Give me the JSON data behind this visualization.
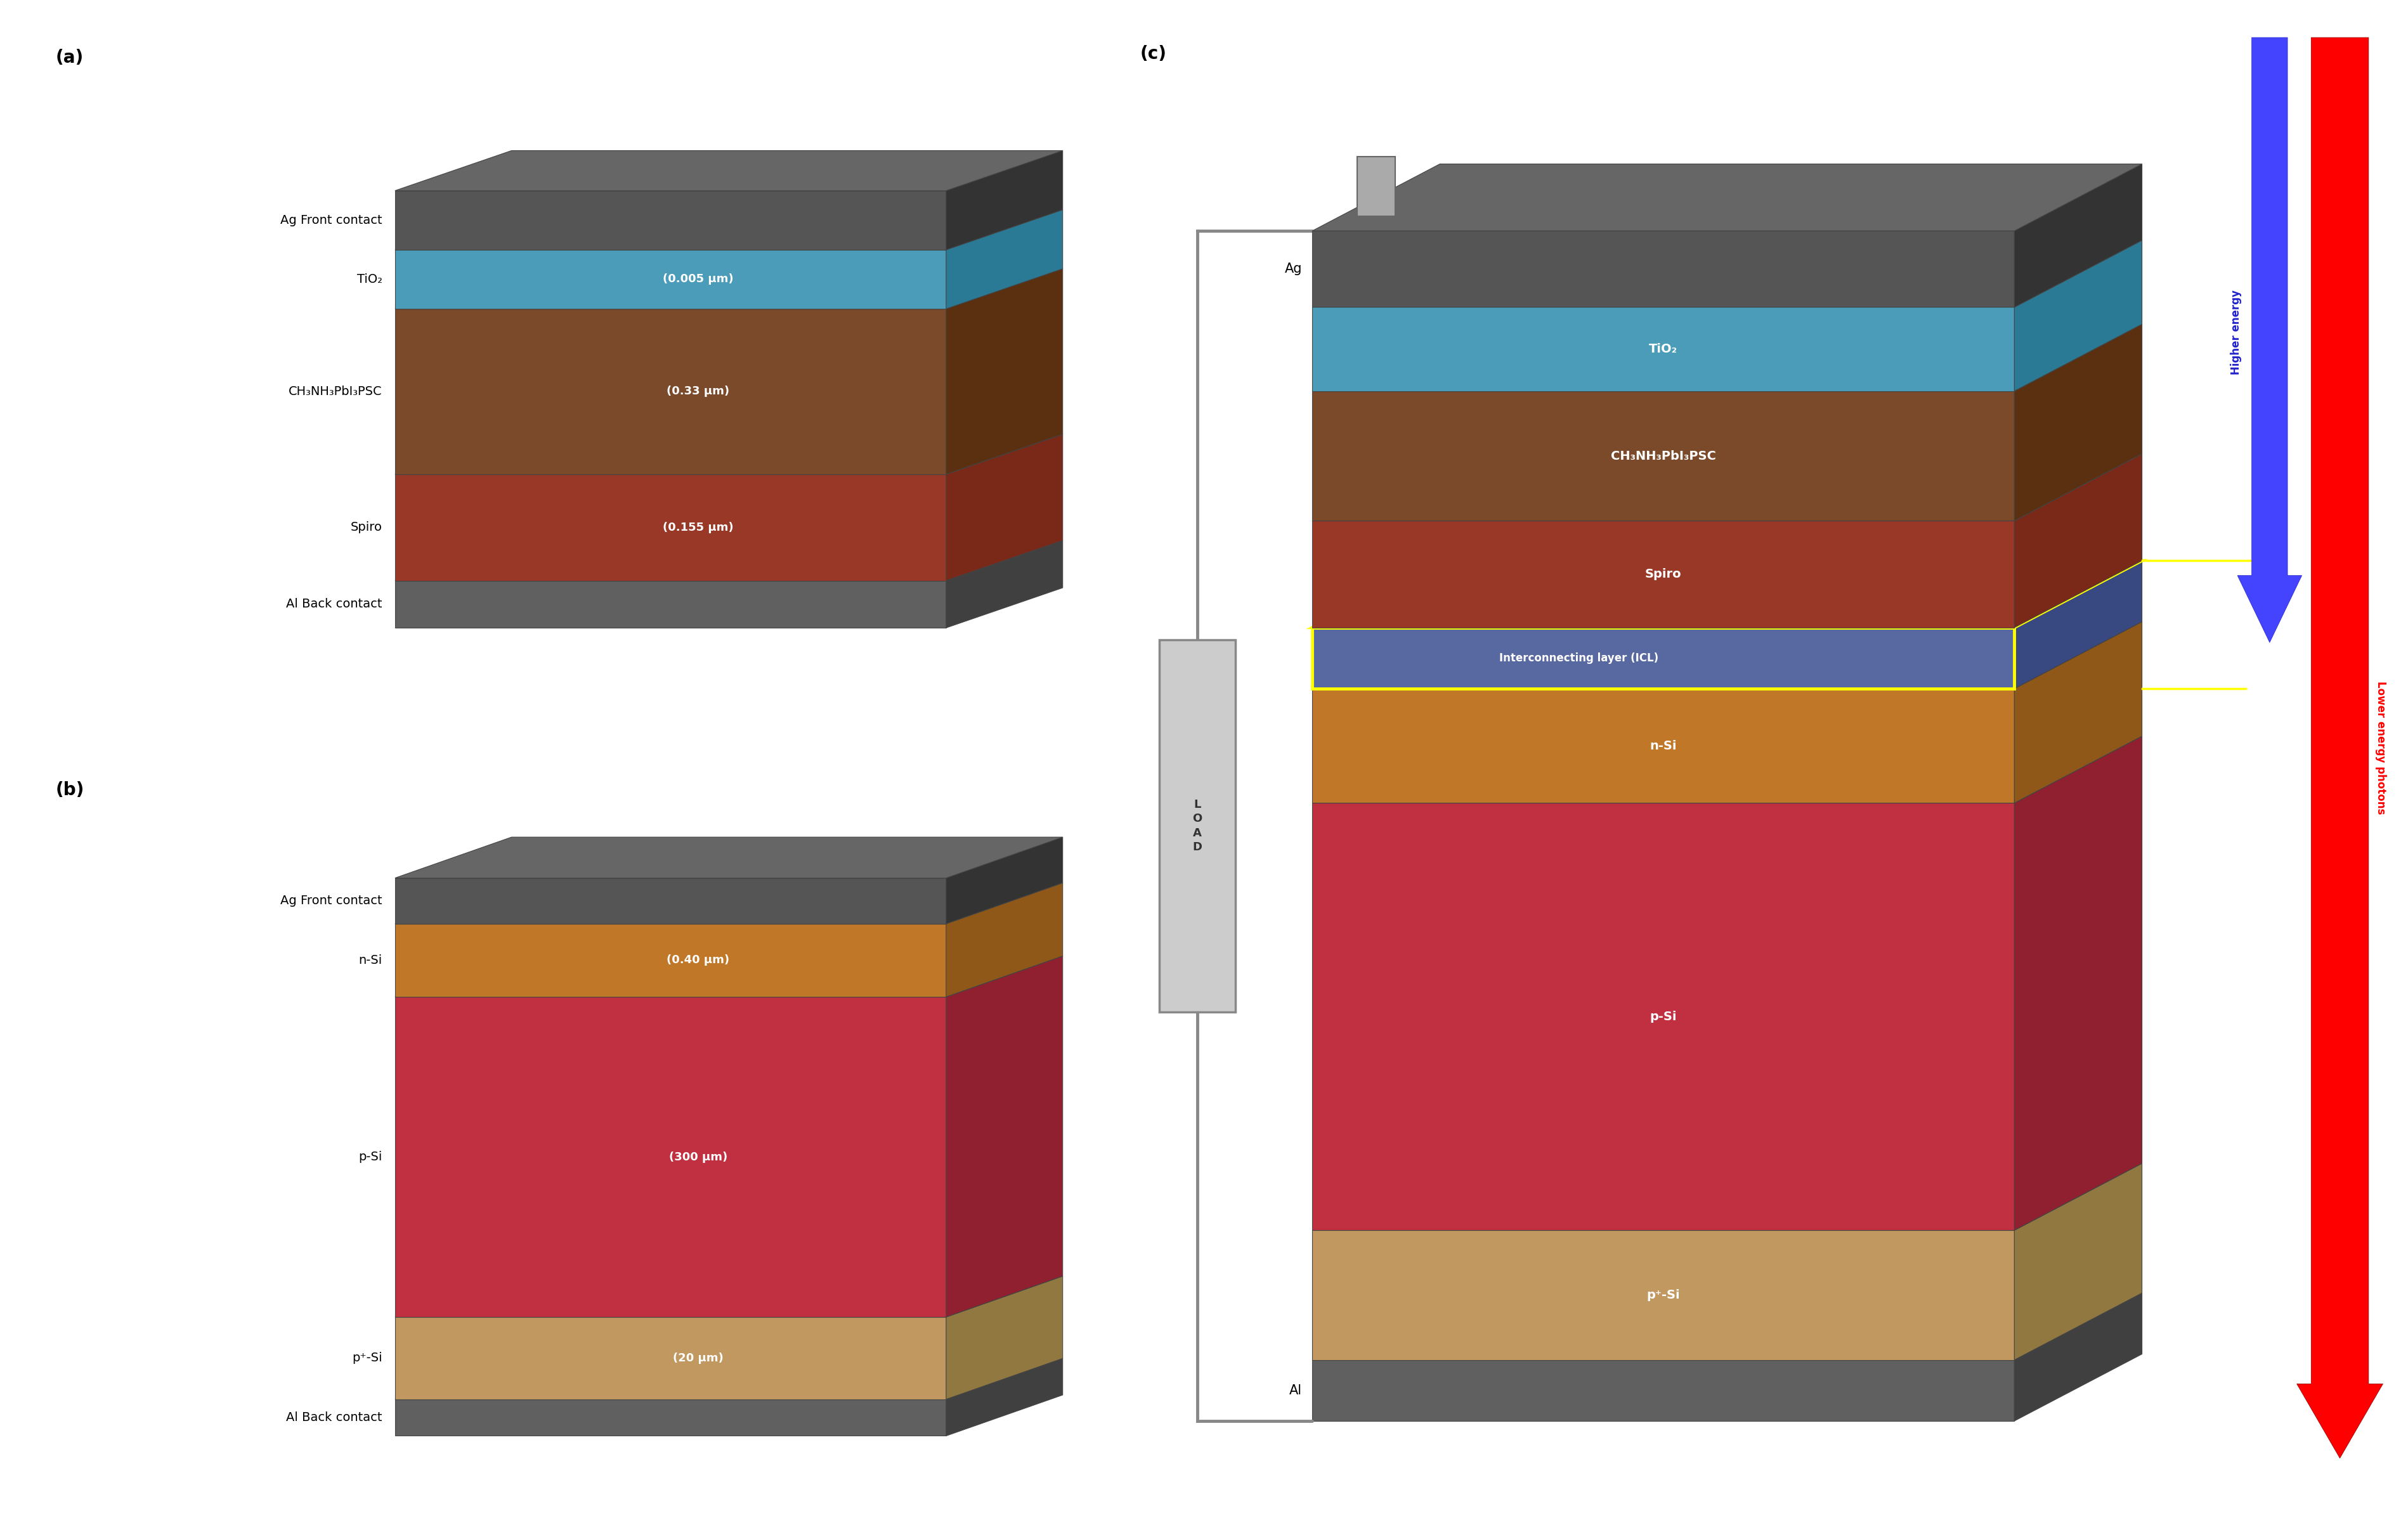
{
  "fig_width": 37.98,
  "fig_height": 23.94,
  "bg_color": "#ffffff",
  "panel_a": {
    "label": "(a)",
    "layers_top_to_bottom": [
      {
        "name": "Ag Front contact",
        "color_face": "#555555",
        "color_side": "#333333",
        "color_top": "#666666",
        "thickness": 0.5,
        "label_text": null
      },
      {
        "name": "TiO₂",
        "color_face": "#4a9cb8",
        "color_side": "#2a7a96",
        "color_top": "#6ab8d4",
        "thickness": 0.5,
        "label_text": "(0.005 μm)"
      },
      {
        "name": "CH₃NH₃PbI₃PSC",
        "color_face": "#7a4a2a",
        "color_side": "#5a3010",
        "color_top": "#8a6040",
        "thickness": 1.4,
        "label_text": "(0.33 μm)"
      },
      {
        "name": "Spiro",
        "color_face": "#9a3828",
        "color_side": "#7a2818",
        "color_top": "#aa4838",
        "thickness": 0.9,
        "label_text": "(0.155 μm)"
      },
      {
        "name": "Al Back contact",
        "color_face": "#606060",
        "color_side": "#404040",
        "color_top": "#707070",
        "thickness": 0.4,
        "label_text": null
      }
    ]
  },
  "panel_b": {
    "label": "(b)",
    "layers_top_to_bottom": [
      {
        "name": "Ag Front contact",
        "color_face": "#555555",
        "color_side": "#333333",
        "color_top": "#666666",
        "thickness": 0.5,
        "label_text": null
      },
      {
        "name": "n-Si",
        "color_face": "#c07828",
        "color_side": "#905818",
        "color_top": "#d09040",
        "thickness": 0.8,
        "label_text": "(0.40 μm)"
      },
      {
        "name": "p-Si",
        "color_face": "#c03040",
        "color_side": "#902030",
        "color_top": "#d04050",
        "thickness": 3.5,
        "label_text": "(300 μm)"
      },
      {
        "name": "p⁺-Si",
        "color_face": "#c09860",
        "color_side": "#907840",
        "color_top": "#d0b070",
        "thickness": 0.9,
        "label_text": "(20 μm)"
      },
      {
        "name": "Al Back contact",
        "color_face": "#606060",
        "color_side": "#404040",
        "color_top": "#707070",
        "thickness": 0.4,
        "label_text": null
      }
    ]
  },
  "panel_c": {
    "label": "(c)",
    "layers_top_to_bottom": [
      {
        "name": "Ag",
        "color_face": "#555555",
        "color_side": "#333333",
        "color_top": "#666666",
        "thickness": 0.5,
        "label_text": null,
        "side_label": "Ag"
      },
      {
        "name": "TiO₂",
        "color_face": "#4a9cb8",
        "color_side": "#2a7a96",
        "color_top": "#6ab8d4",
        "thickness": 0.55,
        "label_text": "TiO₂",
        "side_label": null
      },
      {
        "name": "CH₃NH₃PbI₃PSC",
        "color_face": "#7a4a2a",
        "color_side": "#5a3010",
        "color_top": "#8a6040",
        "thickness": 0.85,
        "label_text": "CH₃NH₃PbI₃PSC",
        "side_label": null
      },
      {
        "name": "Spiro",
        "color_face": "#9a3828",
        "color_side": "#7a2818",
        "color_top": "#aa4838",
        "thickness": 0.7,
        "label_text": "Spiro",
        "side_label": null
      },
      {
        "name": "ICL",
        "color_face": "#5868a0",
        "color_side": "#384880",
        "color_top": "#6878b0",
        "thickness": 0.4,
        "label_text": "Interconnecting layer (ICL)",
        "side_label": null,
        "icl": true
      },
      {
        "name": "n-Si",
        "color_face": "#c07828",
        "color_side": "#905818",
        "color_top": "#d09040",
        "thickness": 0.75,
        "label_text": "n-Si",
        "side_label": null
      },
      {
        "name": "p-Si",
        "color_face": "#c03040",
        "color_side": "#902030",
        "color_top": "#d04050",
        "thickness": 2.8,
        "label_text": "p-Si",
        "side_label": null
      },
      {
        "name": "p⁺-Si",
        "color_face": "#c09860",
        "color_side": "#907840",
        "color_top": "#d0b070",
        "thickness": 0.85,
        "label_text": "p⁺-Si",
        "side_label": null
      },
      {
        "name": "Al",
        "color_face": "#606060",
        "color_side": "#404040",
        "color_top": "#707070",
        "thickness": 0.4,
        "label_text": null,
        "side_label": "Al"
      }
    ]
  }
}
